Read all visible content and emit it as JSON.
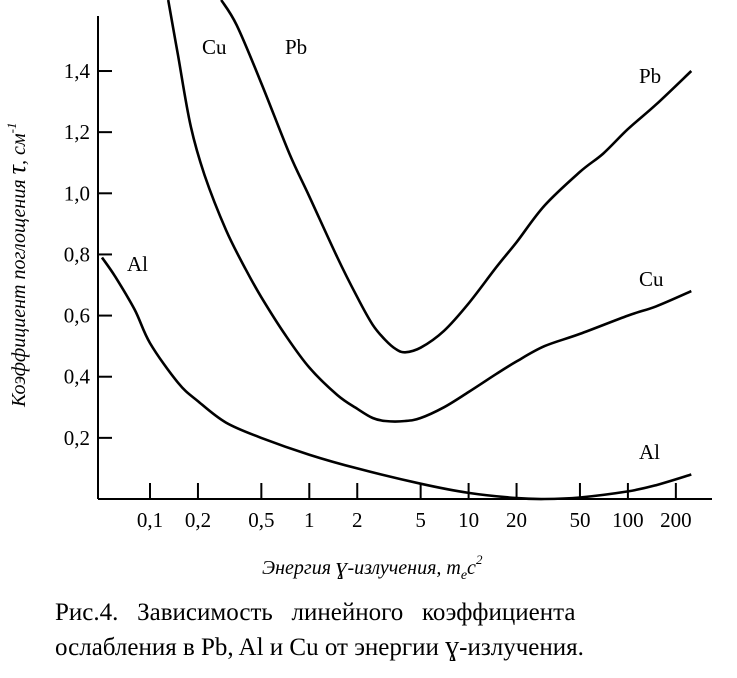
{
  "chart_data": {
    "type": "line",
    "x_scale": "log",
    "xlabel": "Энергия γ-излучения, mₑc²",
    "xlabel_parts": {
      "prefix": "Энергия ",
      "gamma": "ɣ",
      "mid": "-излучения, m",
      "sub": "e",
      "c": "c",
      "sup": "2"
    },
    "ylabel": "Коэффициент поглощения τ, см⁻¹",
    "ylabel_parts": {
      "main": "Коэффициент поглощения ",
      "tau": "τ",
      "unit": ", см",
      "sup": "-1"
    },
    "x_ticks": [
      {
        "value": 0.1,
        "label": "0,1"
      },
      {
        "value": 0.2,
        "label": "0,2"
      },
      {
        "value": 0.5,
        "label": "0,5"
      },
      {
        "value": 1,
        "label": "1"
      },
      {
        "value": 2,
        "label": "2"
      },
      {
        "value": 5,
        "label": "5"
      },
      {
        "value": 10,
        "label": "10"
      },
      {
        "value": 20,
        "label": "20"
      },
      {
        "value": 50,
        "label": "50"
      },
      {
        "value": 100,
        "label": "100"
      },
      {
        "value": 200,
        "label": "200"
      }
    ],
    "y_ticks": [
      {
        "value": 0.2,
        "label": "0,2"
      },
      {
        "value": 0.4,
        "label": "0,4"
      },
      {
        "value": 0.6,
        "label": "0,6"
      },
      {
        "value": 0.8,
        "label": "0,8"
      },
      {
        "value": 1.0,
        "label": "1,0"
      },
      {
        "value": 1.2,
        "label": "1,2"
      },
      {
        "value": 1.4,
        "label": "1,4"
      }
    ],
    "ylim": [
      0,
      1.6
    ],
    "series": [
      {
        "name": "Pb",
        "labels": [
          "Pb",
          "Pb"
        ],
        "x": [
          0.28,
          0.35,
          0.5,
          0.75,
          1.0,
          1.5,
          2.0,
          2.5,
          3.0,
          3.5,
          4.0,
          5.0,
          7.0,
          10,
          15,
          20,
          30,
          50,
          70,
          100,
          150,
          250
        ],
        "y": [
          1.68,
          1.55,
          1.36,
          1.13,
          0.99,
          0.79,
          0.66,
          0.57,
          0.52,
          0.49,
          0.48,
          0.495,
          0.55,
          0.64,
          0.76,
          0.84,
          0.96,
          1.07,
          1.13,
          1.21,
          1.29,
          1.4
        ]
      },
      {
        "name": "Cu",
        "labels": [
          "Cu",
          "Cu"
        ],
        "x": [
          0.13,
          0.15,
          0.18,
          0.22,
          0.3,
          0.4,
          0.5,
          0.7,
          1.0,
          1.5,
          2.0,
          2.5,
          3.0,
          4.0,
          5.0,
          7.0,
          10,
          15,
          20,
          30,
          50,
          100,
          150,
          250
        ],
        "y": [
          1.68,
          1.45,
          1.22,
          1.06,
          0.88,
          0.75,
          0.66,
          0.54,
          0.43,
          0.34,
          0.295,
          0.265,
          0.255,
          0.255,
          0.265,
          0.3,
          0.35,
          0.41,
          0.45,
          0.5,
          0.54,
          0.6,
          0.63,
          0.68
        ]
      },
      {
        "name": "Al",
        "labels": [
          "Al",
          "Al"
        ],
        "x": [
          0.05,
          0.06,
          0.08,
          0.1,
          0.15,
          0.2,
          0.3,
          0.5,
          1.0,
          2.0,
          5.0,
          10,
          20,
          30,
          50,
          100,
          150,
          250
        ],
        "y": [
          0.79,
          0.73,
          0.62,
          0.51,
          0.38,
          0.32,
          0.25,
          0.2,
          0.145,
          0.1,
          0.05,
          0.02,
          0.003,
          0.0,
          0.005,
          0.025,
          0.045,
          0.08
        ]
      }
    ]
  },
  "caption": {
    "line1": "Рис.4.   Зависимость   линейного   коэффициента",
    "line2_a": "ослабления в Pb, Al и Cu от энергии ",
    "line2_gamma": "ɣ",
    "line2_b": "-излучения."
  }
}
